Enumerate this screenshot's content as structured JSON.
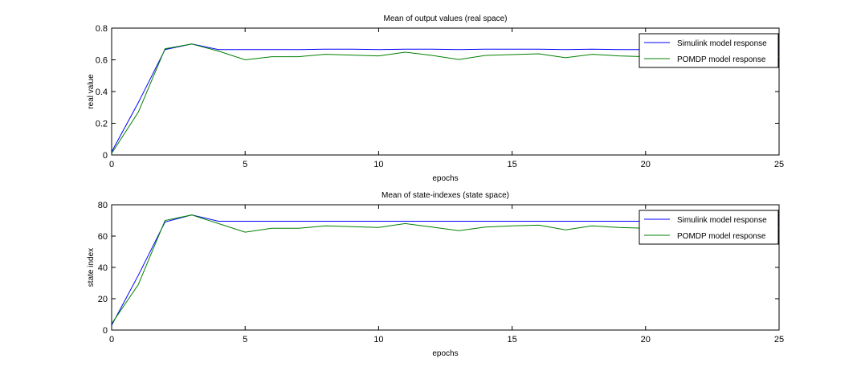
{
  "chart_data": [
    {
      "type": "line",
      "title": "Mean of output values (real space)",
      "xlabel": "epochs",
      "ylabel": "real value",
      "xlim": [
        0,
        25
      ],
      "ylim": [
        0,
        0.8
      ],
      "xticks": [
        0,
        5,
        10,
        15,
        20,
        25
      ],
      "yticks": [
        0,
        0.2,
        0.4,
        0.6,
        0.8
      ],
      "ytick_labels": [
        "0",
        "0.2",
        "0.4",
        "0.6",
        "0.8"
      ],
      "grid": false,
      "legend_position": "top-right",
      "series": [
        {
          "name": "Simulink model response",
          "color": "#0000ff",
          "x": [
            0,
            1,
            2,
            3,
            4,
            5,
            6,
            7,
            8,
            9,
            10,
            11,
            12,
            13,
            14,
            15,
            16,
            17,
            18,
            19,
            20,
            21,
            22,
            23,
            24,
            25
          ],
          "y": [
            0.02,
            0.33,
            0.665,
            0.7,
            0.665,
            0.665,
            0.665,
            0.665,
            0.667,
            0.667,
            0.665,
            0.667,
            0.667,
            0.665,
            0.667,
            0.667,
            0.667,
            0.665,
            0.667,
            0.665,
            0.665,
            0.665,
            0.665,
            0.665,
            0.665,
            0.665
          ]
        },
        {
          "name": "POMDP model response",
          "color": "#008000",
          "x": [
            0,
            1,
            2,
            3,
            4,
            5,
            6,
            7,
            8,
            9,
            10,
            11,
            12,
            13,
            14,
            15,
            16,
            17,
            18,
            19,
            20,
            21,
            22,
            23,
            24,
            25
          ],
          "y": [
            0.01,
            0.27,
            0.67,
            0.7,
            0.655,
            0.6,
            0.62,
            0.62,
            0.635,
            0.63,
            0.625,
            0.648,
            0.628,
            0.602,
            0.628,
            0.633,
            0.638,
            0.613,
            0.635,
            0.625,
            0.62,
            0.62,
            0.62,
            0.62,
            0.62,
            0.62
          ]
        }
      ]
    },
    {
      "type": "line",
      "title": "Mean of state-indexes (state space)",
      "xlabel": "epochs",
      "ylabel": "state index",
      "xlim": [
        0,
        25
      ],
      "ylim": [
        0,
        80
      ],
      "xticks": [
        0,
        5,
        10,
        15,
        20,
        25
      ],
      "yticks": [
        0,
        20,
        40,
        60,
        80
      ],
      "ytick_labels": [
        "0",
        "20",
        "40",
        "60",
        "80"
      ],
      "grid": false,
      "legend_position": "top-right",
      "series": [
        {
          "name": "Simulink model response",
          "color": "#0000ff",
          "x": [
            0,
            1,
            2,
            3,
            4,
            5,
            6,
            7,
            8,
            9,
            10,
            11,
            12,
            13,
            14,
            15,
            16,
            17,
            18,
            19,
            20,
            21,
            22,
            23,
            24,
            25
          ],
          "y": [
            3,
            35,
            69,
            73.5,
            69.5,
            69.5,
            69.5,
            69.5,
            69.5,
            69.5,
            69.5,
            69.5,
            69.5,
            69.5,
            69.5,
            69.5,
            69.5,
            69.5,
            69.5,
            69.5,
            69.5,
            69.5,
            69.5,
            69.5,
            69.5,
            69.5
          ]
        },
        {
          "name": "POMDP model response",
          "color": "#008000",
          "x": [
            0,
            1,
            2,
            3,
            4,
            5,
            6,
            7,
            8,
            9,
            10,
            11,
            12,
            13,
            14,
            15,
            16,
            17,
            18,
            19,
            20,
            21,
            22,
            23,
            24,
            25
          ],
          "y": [
            4,
            29,
            70,
            73.5,
            68,
            62.5,
            65,
            65,
            66.5,
            66,
            65.5,
            68,
            65.8,
            63.5,
            65.8,
            66.5,
            67,
            64,
            66.5,
            65.5,
            65,
            65,
            65,
            65,
            65,
            65
          ]
        }
      ]
    }
  ]
}
